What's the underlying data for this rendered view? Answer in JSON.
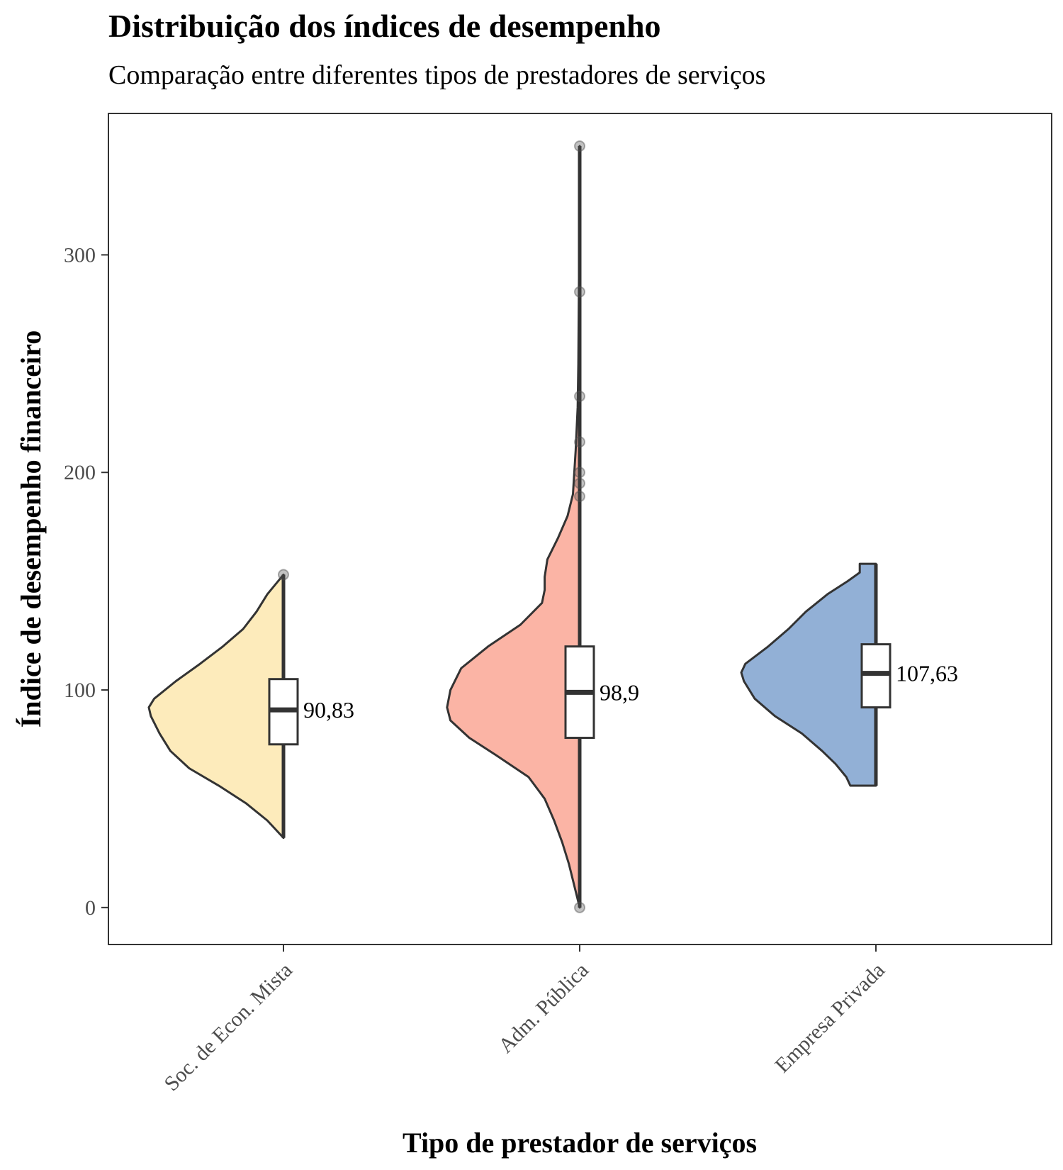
{
  "chart_data": {
    "type": "violin",
    "title": "Distribuição dos índices de desempenho",
    "subtitle": "Comparação entre diferentes tipos de prestadores de serviços",
    "xlabel": "Tipo de prestador de serviços",
    "ylabel": "Índice de desempenho financeiro",
    "ylim": [
      -17,
      365
    ],
    "yticks": [
      0,
      100,
      200,
      300
    ],
    "grid": false,
    "legend": "none",
    "categories": [
      "Soc. de Econ. Mista",
      "Adm. Pública",
      "Empresa Privada"
    ],
    "series": [
      {
        "category": "Soc. de Econ. Mista",
        "color": "#FDEBBB",
        "density": [
          [
            32,
            0
          ],
          [
            40,
            0.12
          ],
          [
            48,
            0.28
          ],
          [
            56,
            0.48
          ],
          [
            64,
            0.7
          ],
          [
            72,
            0.84
          ],
          [
            80,
            0.92
          ],
          [
            88,
            0.985
          ],
          [
            92,
            1.0
          ],
          [
            96,
            0.96
          ],
          [
            104,
            0.8
          ],
          [
            112,
            0.62
          ],
          [
            120,
            0.45
          ],
          [
            128,
            0.3
          ],
          [
            136,
            0.2
          ],
          [
            144,
            0.12
          ],
          [
            153,
            0
          ]
        ],
        "box": {
          "q1": 75,
          "median": 90.83,
          "q3": 105,
          "whisker_low": 32,
          "whisker_high": 153
        },
        "outliers": [
          153
        ],
        "median_label": "90,83"
      },
      {
        "category": "Adm. Pública",
        "color": "#FBB4A5",
        "density": [
          [
            0,
            0
          ],
          [
            10,
            0.04
          ],
          [
            20,
            0.08
          ],
          [
            30,
            0.13
          ],
          [
            40,
            0.19
          ],
          [
            50,
            0.26
          ],
          [
            60,
            0.38
          ],
          [
            70,
            0.62
          ],
          [
            78,
            0.82
          ],
          [
            86,
            0.96
          ],
          [
            92,
            0.985
          ],
          [
            100,
            0.96
          ],
          [
            110,
            0.88
          ],
          [
            120,
            0.68
          ],
          [
            130,
            0.44
          ],
          [
            140,
            0.28
          ],
          [
            146,
            0.26
          ],
          [
            152,
            0.26
          ],
          [
            160,
            0.24
          ],
          [
            170,
            0.16
          ],
          [
            180,
            0.09
          ],
          [
            190,
            0.05
          ],
          [
            210,
            0.03
          ],
          [
            230,
            0.015
          ],
          [
            250,
            0.01
          ],
          [
            300,
            0.004
          ],
          [
            350,
            0
          ]
        ],
        "box": {
          "q1": 78,
          "median": 98.9,
          "q3": 120,
          "whisker_low": 0,
          "whisker_high": 350
        },
        "outliers": [
          350,
          283,
          235,
          214,
          200,
          195,
          189,
          0
        ],
        "median_label": "98,9"
      },
      {
        "category": "Empresa Privada",
        "color": "#92B0D6",
        "density": [
          [
            56,
            0.19
          ],
          [
            60,
            0.22
          ],
          [
            66,
            0.3
          ],
          [
            72,
            0.4
          ],
          [
            80,
            0.55
          ],
          [
            88,
            0.75
          ],
          [
            96,
            0.9
          ],
          [
            104,
            0.98
          ],
          [
            108,
            1.0
          ],
          [
            112,
            0.97
          ],
          [
            120,
            0.8
          ],
          [
            128,
            0.65
          ],
          [
            136,
            0.52
          ],
          [
            144,
            0.36
          ],
          [
            150,
            0.21
          ],
          [
            154,
            0.12
          ],
          [
            158,
            0.12
          ]
        ],
        "box": {
          "q1": 92,
          "median": 107.63,
          "q3": 121,
          "whisker_low": 56,
          "whisker_high": 158
        },
        "outliers": [],
        "median_label": "107,63"
      }
    ]
  }
}
